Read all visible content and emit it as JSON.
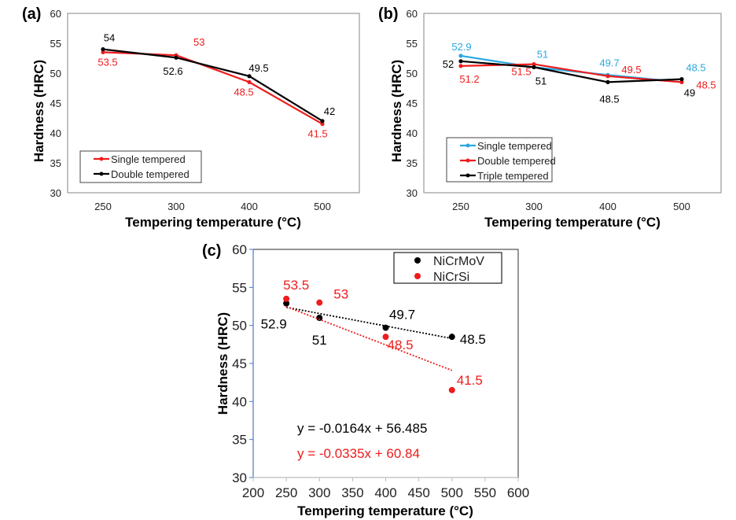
{
  "colors": {
    "black": "#000000",
    "red": "#ee1c1c",
    "blue": "#29a8e0",
    "frame": "#9a9a9a",
    "axis_c": "#4a78c8"
  },
  "chart_data": [
    {
      "panel_label": "(a)",
      "type": "line",
      "categories": [
        "250",
        "300",
        "400",
        "500"
      ],
      "xlabel": "Tempering temperature (°C)",
      "ylabel": "Hardness (HRC)",
      "ylim": [
        30,
        60
      ],
      "yticks": [
        "30",
        "35",
        "40",
        "45",
        "50",
        "55",
        "60"
      ],
      "legend": "bottom-left",
      "series": [
        {
          "name": "Single tempered",
          "color": "#ee1c1c",
          "values": [
            53.5,
            53,
            48.5,
            41.5
          ],
          "labels": [
            "53.5",
            "53",
            "48.5",
            "41.5"
          ]
        },
        {
          "name": "Double tempered",
          "color": "#000000",
          "values": [
            54,
            52.6,
            49.5,
            42
          ],
          "labels": [
            "54",
            "52.6",
            "49.5",
            "42"
          ]
        }
      ]
    },
    {
      "panel_label": "(b)",
      "type": "line",
      "categories": [
        "250",
        "300",
        "400",
        "500"
      ],
      "xlabel": "Tempering temperature (°C)",
      "ylabel": "Hardness (HRC)",
      "ylim": [
        30,
        60
      ],
      "yticks": [
        "30",
        "35",
        "40",
        "45",
        "50",
        "55",
        "60"
      ],
      "legend": "bottom-left",
      "series": [
        {
          "name": "Single tempered",
          "color": "#29a8e0",
          "values": [
            52.9,
            51,
            49.7,
            48.5
          ],
          "labels": [
            "52.9",
            "51",
            "49.7",
            "48.5"
          ]
        },
        {
          "name": "Double tempered",
          "color": "#ee1c1c",
          "values": [
            51.2,
            51.5,
            49.5,
            48.5
          ],
          "labels": [
            "51.2",
            "51.5",
            "49.5",
            "48.5"
          ]
        },
        {
          "name": "Triple tempered",
          "color": "#000000",
          "values": [
            52,
            51,
            48.5,
            49
          ],
          "labels": [
            "52",
            "51",
            "48.5",
            "49"
          ]
        }
      ]
    },
    {
      "panel_label": "(c)",
      "type": "scatter",
      "xlabel": "Tempering temperature (°C)",
      "ylabel": "Hardness (HRC)",
      "xlim": [
        200,
        600
      ],
      "ylim": [
        30,
        60
      ],
      "xticks": [
        "200",
        "250",
        "300",
        "350",
        "400",
        "450",
        "500",
        "550",
        "600"
      ],
      "yticks": [
        "30",
        "35",
        "40",
        "45",
        "50",
        "55",
        "60"
      ],
      "legend": "top-right",
      "series": [
        {
          "name": "NiCrMoV",
          "color": "#000000",
          "x": [
            250,
            300,
            400,
            500
          ],
          "y": [
            52.9,
            51,
            49.7,
            48.5
          ],
          "labels": [
            "52.9",
            "51",
            "49.7",
            "48.5"
          ],
          "trendline": {
            "slope": -0.0164,
            "intercept": 56.485,
            "equation": "y = -0.0164x + 56.485"
          }
        },
        {
          "name": "NiCrSi",
          "color": "#ee1c1c",
          "x": [
            250,
            300,
            400,
            500
          ],
          "y": [
            53.5,
            53,
            48.5,
            41.5
          ],
          "labels": [
            "53.5",
            "53",
            "48.5",
            "41.5"
          ],
          "trendline": {
            "slope": -0.0335,
            "intercept": 60.84,
            "equation": "y = -0.0335x + 60.84"
          }
        }
      ]
    }
  ]
}
